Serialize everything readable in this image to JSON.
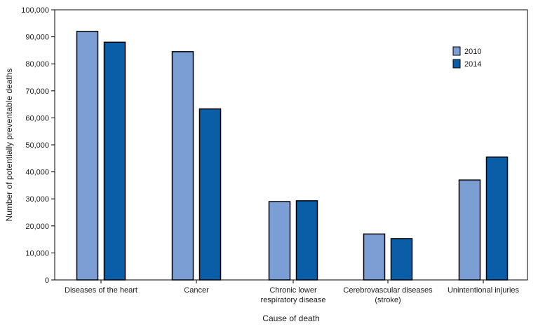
{
  "chart_data": {
    "type": "bar",
    "xlabel": "Cause of death",
    "ylabel": "Number of potentially preventable deaths",
    "ylim": [
      0,
      100000
    ],
    "yticks": [
      "0",
      "10,000",
      "20,000",
      "30,000",
      "40,000",
      "50,000",
      "60,000",
      "70,000",
      "80,000",
      "90,000",
      "100,000"
    ],
    "categories": [
      [
        "Diseases of the heart"
      ],
      [
        "Cancer"
      ],
      [
        "Chronic lower",
        "respiratory disease"
      ],
      [
        "Cerebrovascular diseases",
        "(stroke)"
      ],
      [
        "Unintentional injuries"
      ]
    ],
    "series": [
      {
        "name": "2010",
        "color": "#7b9fd4",
        "values": [
          92000,
          84500,
          29000,
          17000,
          37000
        ]
      },
      {
        "name": "2014",
        "color": "#0a5ea8",
        "values": [
          88000,
          63300,
          29300,
          15300,
          45500
        ]
      }
    ],
    "grid": false,
    "legend_position": "top-right"
  }
}
